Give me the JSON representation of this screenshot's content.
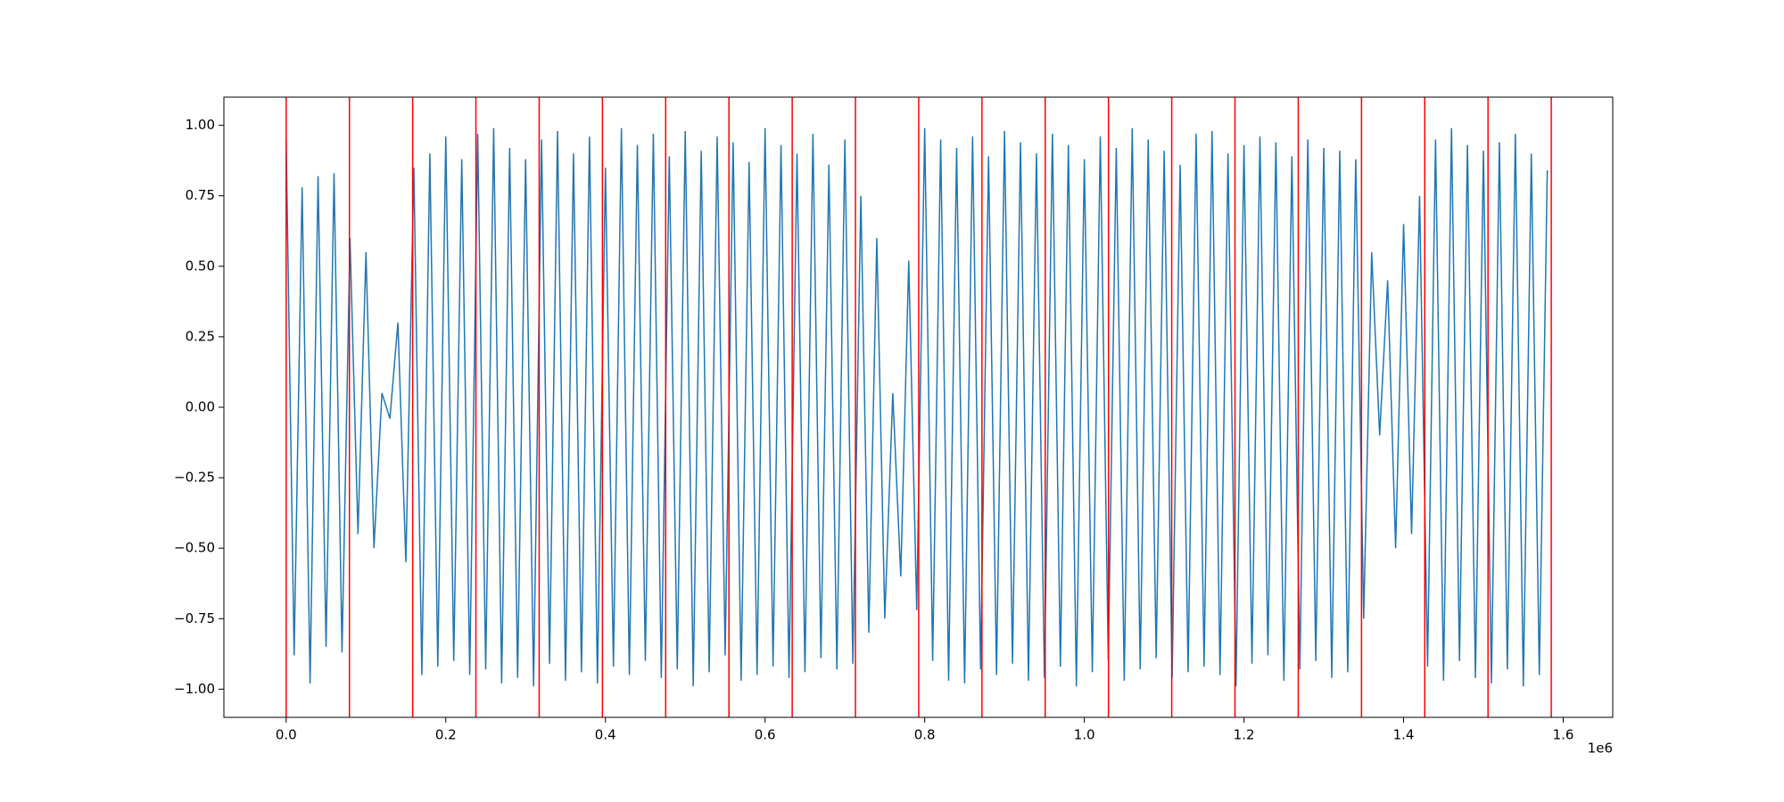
{
  "chart_data": {
    "type": "line",
    "series": [
      {
        "color": "#1f77b4",
        "x": [
          0,
          10000,
          20000,
          30000,
          40000,
          50000,
          60000,
          70000,
          80000,
          90000,
          100000,
          110000,
          120000,
          130000,
          140000,
          150000,
          160000,
          170000,
          180000,
          190000,
          200000,
          210000,
          220000,
          230000,
          240000,
          250000,
          260000,
          270000,
          280000,
          290000,
          300000,
          310000,
          320000,
          330000,
          340000,
          350000,
          360000,
          370000,
          380000,
          390000,
          400000,
          410000,
          420000,
          430000,
          440000,
          450000,
          460000,
          470000,
          480000,
          490000,
          500000,
          510000,
          520000,
          530000,
          540000,
          550000,
          560000,
          570000,
          580000,
          590000,
          600000,
          610000,
          620000,
          630000,
          640000,
          650000,
          660000,
          670000,
          680000,
          690000,
          700000,
          710000,
          720000,
          730000,
          740000,
          750000,
          760000,
          770000,
          780000,
          790000,
          800000,
          810000,
          820000,
          830000,
          840000,
          850000,
          860000,
          870000,
          880000,
          890000,
          900000,
          910000,
          920000,
          930000,
          940000,
          950000,
          960000,
          970000,
          980000,
          990000,
          1000000,
          1010000,
          1020000,
          1030000,
          1040000,
          1050000,
          1060000,
          1070000,
          1080000,
          1090000,
          1100000,
          1110000,
          1120000,
          1130000,
          1140000,
          1150000,
          1160000,
          1170000,
          1180000,
          1190000,
          1200000,
          1210000,
          1220000,
          1230000,
          1240000,
          1250000,
          1260000,
          1270000,
          1280000,
          1290000,
          1300000,
          1310000,
          1320000,
          1330000,
          1340000,
          1350000,
          1360000,
          1370000,
          1380000,
          1390000,
          1400000,
          1410000,
          1420000,
          1430000,
          1440000,
          1450000,
          1460000,
          1470000,
          1480000,
          1490000,
          1500000,
          1510000,
          1520000,
          1530000,
          1540000,
          1550000,
          1560000,
          1570000,
          1580000
        ],
        "values": [
          0.95,
          -0.88,
          0.78,
          -0.98,
          0.82,
          -0.85,
          0.83,
          -0.87,
          0.6,
          -0.45,
          0.55,
          -0.5,
          0.05,
          -0.04,
          0.3,
          -0.55,
          0.85,
          -0.95,
          0.9,
          -0.92,
          0.96,
          -0.9,
          0.88,
          -0.95,
          0.97,
          -0.93,
          0.99,
          -0.98,
          0.92,
          -0.96,
          0.88,
          -0.99,
          0.95,
          -0.91,
          0.98,
          -0.97,
          0.9,
          -0.94,
          0.96,
          -0.98,
          0.85,
          -0.92,
          0.99,
          -0.95,
          0.93,
          -0.9,
          0.97,
          -0.96,
          0.89,
          -0.93,
          0.98,
          -0.99,
          0.91,
          -0.94,
          0.96,
          -0.88,
          0.94,
          -0.97,
          0.87,
          -0.95,
          0.99,
          -0.92,
          0.93,
          -0.96,
          0.9,
          -0.94,
          0.97,
          -0.89,
          0.86,
          -0.93,
          0.95,
          -0.91,
          0.75,
          -0.8,
          0.6,
          -0.75,
          0.05,
          -0.6,
          0.52,
          -0.72,
          0.99,
          -0.9,
          0.95,
          -0.97,
          0.92,
          -0.98,
          0.96,
          -0.93,
          0.89,
          -0.95,
          0.98,
          -0.91,
          0.94,
          -0.97,
          0.9,
          -0.96,
          0.97,
          -0.92,
          0.93,
          -0.99,
          0.88,
          -0.94,
          0.96,
          -0.9,
          0.92,
          -0.97,
          0.99,
          -0.93,
          0.95,
          -0.89,
          0.91,
          -0.96,
          0.86,
          -0.94,
          0.97,
          -0.92,
          0.98,
          -0.95,
          0.9,
          -0.99,
          0.93,
          -0.91,
          0.96,
          -0.88,
          0.94,
          -0.97,
          0.89,
          -0.93,
          0.95,
          -0.9,
          0.92,
          -0.96,
          0.91,
          -0.94,
          0.88,
          -0.75,
          0.55,
          -0.1,
          0.45,
          -0.5,
          0.65,
          -0.45,
          0.75,
          -0.92,
          0.95,
          -0.97,
          0.99,
          -0.9,
          0.93,
          -0.96,
          0.91,
          -0.98,
          0.94,
          -0.93,
          0.97,
          -0.99,
          0.9,
          -0.95,
          0.84
        ]
      }
    ],
    "vlines": {
      "color": "red",
      "x": [
        0,
        79250,
        158500,
        237750,
        317000,
        396250,
        475500,
        554750,
        634000,
        713250,
        792500,
        871750,
        951000,
        1030250,
        1109500,
        1188750,
        1268000,
        1347250,
        1426500,
        1505750,
        1585000
      ]
    },
    "xlim": [
      -78000,
      1662000
    ],
    "ylim": [
      -1.1,
      1.1
    ],
    "xticks": [
      {
        "value": 0,
        "label": "0.0"
      },
      {
        "value": 200000,
        "label": "0.2"
      },
      {
        "value": 400000,
        "label": "0.4"
      },
      {
        "value": 600000,
        "label": "0.6"
      },
      {
        "value": 800000,
        "label": "0.8"
      },
      {
        "value": 1000000,
        "label": "1.0"
      },
      {
        "value": 1200000,
        "label": "1.2"
      },
      {
        "value": 1400000,
        "label": "1.4"
      },
      {
        "value": 1600000,
        "label": "1.6"
      }
    ],
    "yticks": [
      {
        "value": -1,
        "label": "−1.00"
      },
      {
        "value": -0.75,
        "label": "−0.75"
      },
      {
        "value": -0.5,
        "label": "−0.50"
      },
      {
        "value": -0.25,
        "label": "−0.25"
      },
      {
        "value": 0,
        "label": "0.00"
      },
      {
        "value": 0.25,
        "label": "0.25"
      },
      {
        "value": 0.5,
        "label": "0.50"
      },
      {
        "value": 0.75,
        "label": "0.75"
      },
      {
        "value": 1,
        "label": "1.00"
      }
    ],
    "x_offset_text": "1e6",
    "grid": false
  }
}
